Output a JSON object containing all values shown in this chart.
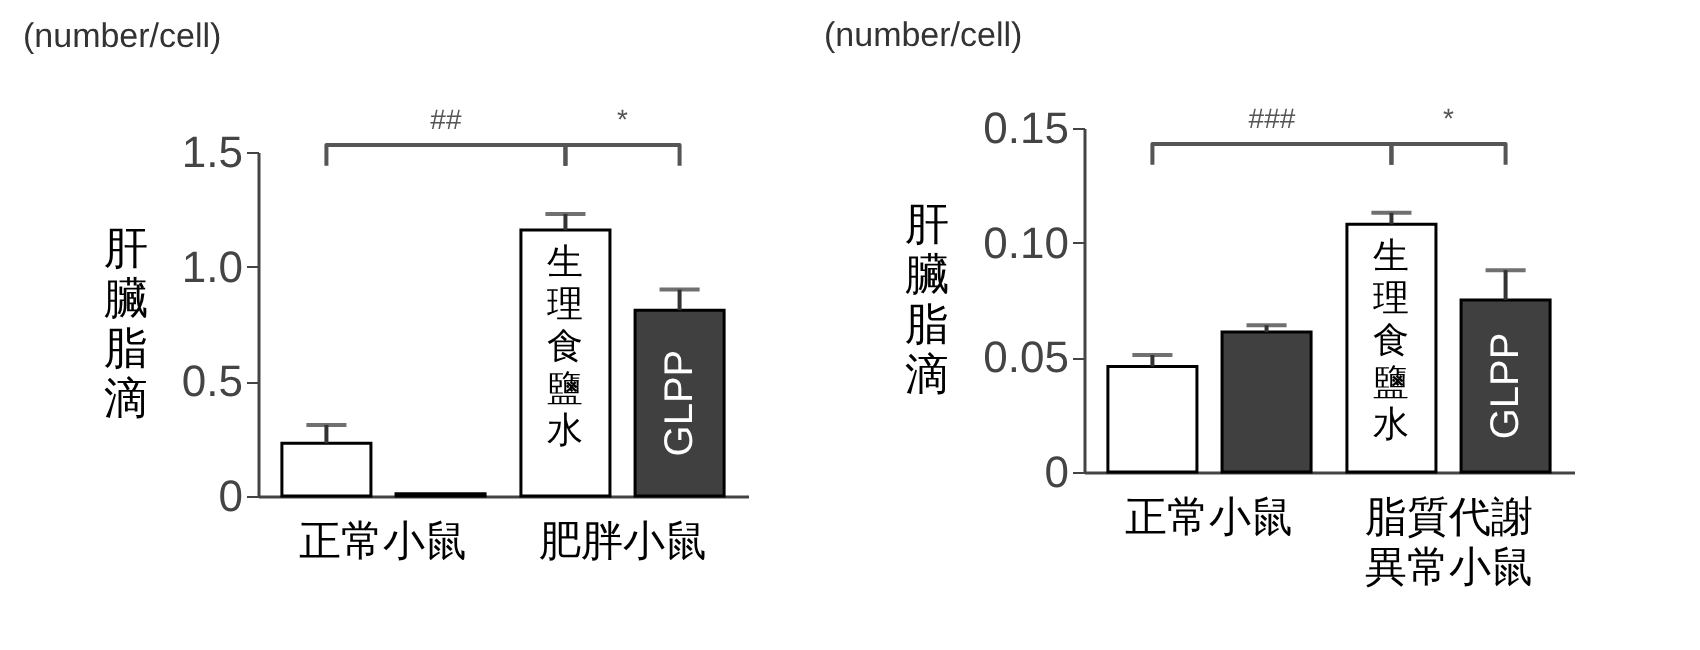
{
  "chart_data": [
    {
      "type": "bar",
      "subtitle": "(number/cell)",
      "ylabel": "肝臟脂滴",
      "categories": [
        "正常小鼠",
        "肥胖小鼠"
      ],
      "series": [
        {
          "name": "生理食鹽水",
          "color": "#ffffff",
          "values": [
            0.23,
            1.16
          ],
          "errors": [
            [
              0.23,
              0.31
            ],
            [
              1.16,
              1.23
            ]
          ]
        },
        {
          "name": "GLPP",
          "color": "#404040",
          "values": [
            0.01,
            0.81
          ],
          "errors": [
            null,
            [
              0.81,
              0.9
            ]
          ]
        }
      ],
      "ylim": [
        0,
        1.5
      ],
      "yticks": [
        0,
        0.5,
        {
          "value": 1,
          "label": "1.0"
        },
        1.5
      ],
      "annotations": [
        "##",
        "*"
      ]
    },
    {
      "type": "bar",
      "subtitle": "(number/cell)",
      "ylabel": "肝臟脂滴",
      "categories": [
        "正常小鼠",
        "脂質代謝異常小鼠"
      ],
      "series": [
        {
          "name": "生理食鹽水",
          "color": "#ffffff",
          "values": [
            0.046,
            0.108
          ],
          "errors": [
            [
              0.046,
              0.051
            ],
            [
              0.108,
              0.113
            ]
          ]
        },
        {
          "name": "GLPP",
          "color": "#404040",
          "values": [
            0.061,
            0.075
          ],
          "errors": [
            [
              0.061,
              0.064
            ],
            [
              0.075,
              0.088
            ]
          ]
        }
      ],
      "ylim": [
        0,
        0.15
      ],
      "yticks": [
        0,
        0.05,
        {
          "value": 0.1,
          "label": "0.10"
        },
        0.15
      ],
      "annotations": [
        "###",
        "*"
      ]
    }
  ]
}
